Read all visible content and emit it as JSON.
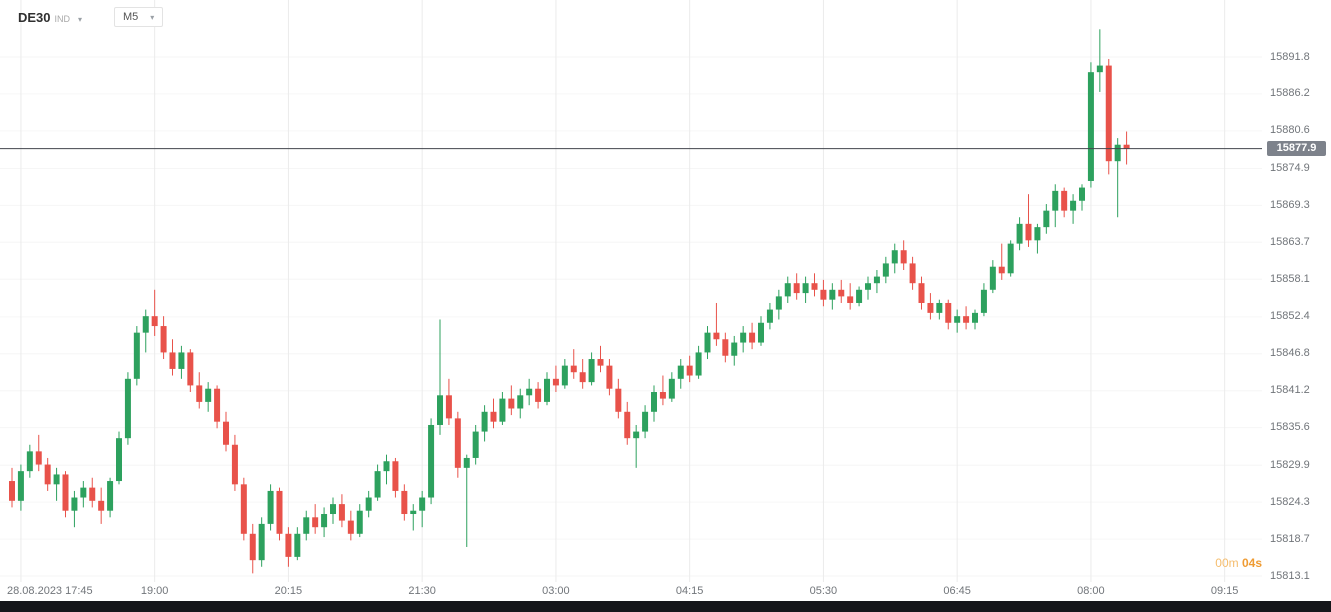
{
  "header": {
    "symbol": "DE30",
    "symbol_suffix": "IND",
    "timeframe": "M5"
  },
  "icons": {
    "caret_down": "▾"
  },
  "price_line": {
    "label": "15877.9"
  },
  "countdown": {
    "minutes": "00m",
    "seconds": "04s"
  },
  "chart_data": {
    "type": "candlestick",
    "symbol": "DE30",
    "timeframe": "M5",
    "current_price": 15877.9,
    "ylim": [
      15813.1,
      15891.8
    ],
    "gridlines": {
      "vertical": true,
      "horizontal": "faint"
    },
    "colors": {
      "up": "#2da15e",
      "down": "#e8524a"
    },
    "price_axis_ticks": [
      "15891.8",
      "15886.2",
      "15880.6",
      "15874.9",
      "15869.3",
      "15863.7",
      "15858.1",
      "15852.4",
      "15846.8",
      "15841.2",
      "15835.6",
      "15829.9",
      "15824.3",
      "15818.7",
      "15813.1"
    ],
    "time_axis_ticks": [
      {
        "label": "28.08.2023 17:45",
        "index": 1,
        "clamp_left": true
      },
      {
        "label": "19:00",
        "index": 16
      },
      {
        "label": "20:15",
        "index": 31
      },
      {
        "label": "21:30",
        "index": 46
      },
      {
        "label": "03:00",
        "index": 61
      },
      {
        "label": "04:15",
        "index": 76
      },
      {
        "label": "05:30",
        "index": 91
      },
      {
        "label": "06:45",
        "index": 106
      },
      {
        "label": "08:00",
        "index": 121
      },
      {
        "label": "09:15",
        "index": 136
      }
    ],
    "candles": [
      [
        15827.5,
        15829.5,
        15823.5,
        15824.5
      ],
      [
        15824.5,
        15830,
        15823,
        15829
      ],
      [
        15829,
        15833,
        15828,
        15832
      ],
      [
        15832,
        15834.5,
        15829,
        15830
      ],
      [
        15830,
        15831,
        15826,
        15827
      ],
      [
        15827,
        15829.5,
        15824.5,
        15828.5
      ],
      [
        15828.5,
        15829,
        15822,
        15823
      ],
      [
        15823,
        15826,
        15820.5,
        15825
      ],
      [
        15825,
        15827.5,
        15823.5,
        15826.5
      ],
      [
        15826.5,
        15828,
        15823.5,
        15824.5
      ],
      [
        15824.5,
        15826.5,
        15821,
        15823
      ],
      [
        15823,
        15828,
        15822,
        15827.5
      ],
      [
        15827.5,
        15835,
        15827,
        15834
      ],
      [
        15834,
        15844,
        15833,
        15843
      ],
      [
        15843,
        15851,
        15842,
        15850
      ],
      [
        15850,
        15853.5,
        15847,
        15852.5
      ],
      [
        15852.5,
        15856.5,
        15849.5,
        15851
      ],
      [
        15851,
        15852.5,
        15846,
        15847
      ],
      [
        15847,
        15849,
        15843.5,
        15844.5
      ],
      [
        15844.5,
        15848,
        15843,
        15847
      ],
      [
        15847,
        15847.5,
        15841,
        15842
      ],
      [
        15842,
        15844,
        15838.5,
        15839.5
      ],
      [
        15839.5,
        15842.5,
        15838,
        15841.5
      ],
      [
        15841.5,
        15842,
        15835.5,
        15836.5
      ],
      [
        15836.5,
        15838,
        15832,
        15833
      ],
      [
        15833,
        15834.5,
        15826,
        15827
      ],
      [
        15827,
        15828,
        15818.5,
        15819.5
      ],
      [
        15819.5,
        15821,
        15813.5,
        15815.5
      ],
      [
        15815.5,
        15822,
        15814.5,
        15821
      ],
      [
        15821,
        15827,
        15820,
        15826
      ],
      [
        15826,
        15826.5,
        15818.5,
        15819.5
      ],
      [
        15819.5,
        15820.5,
        15814.5,
        15816
      ],
      [
        15816,
        15820.5,
        15815.5,
        15819.5
      ],
      [
        15819.5,
        15823,
        15818.5,
        15822
      ],
      [
        15822,
        15824,
        15819.5,
        15820.5
      ],
      [
        15820.5,
        15823.5,
        15819,
        15822.5
      ],
      [
        15822.5,
        15825,
        15821,
        15824
      ],
      [
        15824,
        15825.5,
        15820.5,
        15821.5
      ],
      [
        15821.5,
        15823,
        15818.5,
        15819.5
      ],
      [
        15819.5,
        15824,
        15819,
        15823
      ],
      [
        15823,
        15826,
        15822,
        15825
      ],
      [
        15825,
        15830,
        15824.5,
        15829
      ],
      [
        15829,
        15831.5,
        15827,
        15830.5
      ],
      [
        15830.5,
        15831,
        15825,
        15826
      ],
      [
        15826,
        15827,
        15821.5,
        15822.5
      ],
      [
        15822.5,
        15824,
        15820,
        15823
      ],
      [
        15823,
        15826,
        15820.5,
        15825
      ],
      [
        15825,
        15837,
        15824,
        15836
      ],
      [
        15836,
        15852,
        15834.5,
        15840.5
      ],
      [
        15840.5,
        15843,
        15836,
        15837
      ],
      [
        15837,
        15838,
        15828,
        15829.5
      ],
      [
        15829.5,
        15831.5,
        15817.5,
        15831
      ],
      [
        15831,
        15836,
        15830,
        15835
      ],
      [
        15835,
        15839,
        15833.5,
        15838
      ],
      [
        15838,
        15840,
        15835.5,
        15836.5
      ],
      [
        15836.5,
        15841,
        15836,
        15840
      ],
      [
        15840,
        15842,
        15837.5,
        15838.5
      ],
      [
        15838.5,
        15841.5,
        15837,
        15840.5
      ],
      [
        15840.5,
        15843,
        15839,
        15841.5
      ],
      [
        15841.5,
        15842.5,
        15838.5,
        15839.5
      ],
      [
        15839.5,
        15844,
        15839,
        15843
      ],
      [
        15843,
        15845,
        15841,
        15842
      ],
      [
        15842,
        15846,
        15841.5,
        15845
      ],
      [
        15845,
        15847.5,
        15843,
        15844
      ],
      [
        15844,
        15846,
        15841.5,
        15842.5
      ],
      [
        15842.5,
        15847,
        15842,
        15846
      ],
      [
        15846,
        15848,
        15844,
        15845
      ],
      [
        15845,
        15846,
        15840.5,
        15841.5
      ],
      [
        15841.5,
        15843,
        15837,
        15838
      ],
      [
        15838,
        15839.5,
        15833,
        15834
      ],
      [
        15834,
        15836,
        15829.5,
        15835
      ],
      [
        15835,
        15839,
        15834,
        15838
      ],
      [
        15838,
        15842,
        15836.5,
        15841
      ],
      [
        15841,
        15843.5,
        15839,
        15840
      ],
      [
        15840,
        15844,
        15839.5,
        15843
      ],
      [
        15843,
        15846,
        15841.5,
        15845
      ],
      [
        15845,
        15846.5,
        15842.5,
        15843.5
      ],
      [
        15843.5,
        15848,
        15843,
        15847
      ],
      [
        15847,
        15851,
        15846,
        15850
      ],
      [
        15850,
        15854.5,
        15848,
        15849
      ],
      [
        15849,
        15850,
        15845.5,
        15846.5
      ],
      [
        15846.5,
        15849.5,
        15845,
        15848.5
      ],
      [
        15848.5,
        15851,
        15847,
        15850
      ],
      [
        15850,
        15851.5,
        15847.5,
        15848.5
      ],
      [
        15848.5,
        15852.5,
        15848,
        15851.5
      ],
      [
        15851.5,
        15854.5,
        15850.5,
        15853.5
      ],
      [
        15853.5,
        15856.5,
        15852,
        15855.5
      ],
      [
        15855.5,
        15858.5,
        15854.5,
        15857.5
      ],
      [
        15857.5,
        15859,
        15855,
        15856
      ],
      [
        15856,
        15858.5,
        15854.5,
        15857.5
      ],
      [
        15857.5,
        15859,
        15855.5,
        15856.5
      ],
      [
        15856.5,
        15858,
        15854,
        15855
      ],
      [
        15855,
        15857.5,
        15853.5,
        15856.5
      ],
      [
        15856.5,
        15858,
        15854.5,
        15855.5
      ],
      [
        15855.5,
        15857.5,
        15853.5,
        15854.5
      ],
      [
        15854.5,
        15857,
        15854,
        15856.5
      ],
      [
        15856.5,
        15858.5,
        15855,
        15857.5
      ],
      [
        15857.5,
        15859.5,
        15856,
        15858.5
      ],
      [
        15858.5,
        15861.5,
        15857.5,
        15860.5
      ],
      [
        15860.5,
        15863.5,
        15859,
        15862.5
      ],
      [
        15862.5,
        15864,
        15859.5,
        15860.5
      ],
      [
        15860.5,
        15861.5,
        15856.5,
        15857.5
      ],
      [
        15857.5,
        15858.5,
        15853.5,
        15854.5
      ],
      [
        15854.5,
        15856,
        15852,
        15853
      ],
      [
        15853,
        15855,
        15852,
        15854.5
      ],
      [
        15854.5,
        15855,
        15850.5,
        15851.5
      ],
      [
        15851.5,
        15853.5,
        15850,
        15852.5
      ],
      [
        15852.5,
        15854,
        15850.5,
        15851.5
      ],
      [
        15851.5,
        15853.5,
        15850.5,
        15853
      ],
      [
        15853,
        15857.5,
        15852.5,
        15856.5
      ],
      [
        15856.5,
        15861,
        15856,
        15860
      ],
      [
        15860,
        15863.5,
        15858,
        15859
      ],
      [
        15859,
        15864,
        15858.5,
        15863.5
      ],
      [
        15863.5,
        15867.5,
        15862.5,
        15866.5
      ],
      [
        15866.5,
        15871,
        15863,
        15864
      ],
      [
        15864,
        15866.5,
        15862,
        15866
      ],
      [
        15866,
        15869.5,
        15865,
        15868.5
      ],
      [
        15868.5,
        15872.5,
        15866,
        15871.5
      ],
      [
        15871.5,
        15872,
        15867.5,
        15868.5
      ],
      [
        15868.5,
        15871,
        15866.5,
        15870
      ],
      [
        15870,
        15872.5,
        15868.5,
        15872
      ],
      [
        15873,
        15891,
        15872,
        15889.5
      ],
      [
        15889.5,
        15896,
        15886.5,
        15890.5
      ],
      [
        15890.5,
        15891.5,
        15874,
        15876
      ],
      [
        15876,
        15879.5,
        15867.5,
        15878.5
      ],
      [
        15878.5,
        15880.5,
        15875.5,
        15877.9
      ]
    ]
  }
}
